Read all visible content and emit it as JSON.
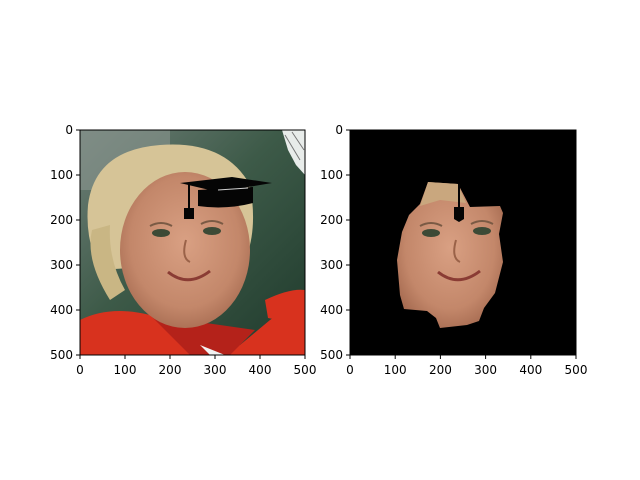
{
  "figure": {
    "background": "#ffffff"
  },
  "chart_data": [
    {
      "type": "image",
      "content": "photo of a smiling blonde woman in a red top with a black graduation cap overlaid on her head",
      "xlim": [
        0,
        500
      ],
      "ylim": [
        500,
        0
      ],
      "xticks": [
        0,
        100,
        200,
        300,
        400,
        500
      ],
      "yticks": [
        0,
        100,
        200,
        300,
        400,
        500
      ],
      "xtick_labels": [
        "0",
        "100",
        "200",
        "300",
        "400",
        "500"
      ],
      "ytick_labels": [
        "0",
        "100",
        "200",
        "300",
        "400",
        "500"
      ],
      "title": "",
      "xlabel": "",
      "ylabel": "",
      "grid": false
    },
    {
      "type": "image",
      "content": "segmented face region on a black background with the cap tassel overlay",
      "xlim": [
        0,
        500
      ],
      "ylim": [
        500,
        0
      ],
      "xticks": [
        0,
        100,
        200,
        300,
        400,
        500
      ],
      "yticks": [
        0,
        100,
        200,
        300,
        400,
        500
      ],
      "xtick_labels": [
        "0",
        "100",
        "200",
        "300",
        "400",
        "500"
      ],
      "ytick_labels": [
        "0",
        "100",
        "200",
        "300",
        "400",
        "500"
      ],
      "title": "",
      "xlabel": "",
      "ylabel": "",
      "grid": false
    }
  ],
  "colors": {
    "axes_frame": "#000000",
    "mask_background": "#000000",
    "skin": "#c98d6e",
    "skin_shadow": "#a86a4f",
    "hair": "#d8c79a",
    "shirt": "#d8321e",
    "bg_green": "#2f4d3a",
    "cap": "#050505"
  }
}
